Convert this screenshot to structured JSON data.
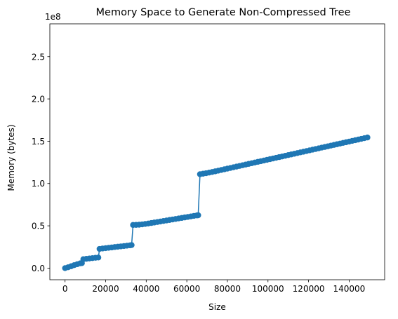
{
  "chart_data": {
    "type": "line",
    "title": "Memory Space to Generate Non-Compressed Tree",
    "xlabel": "Size",
    "ylabel": "Memory (bytes)",
    "y_offset_label": "1e8",
    "y_multiplier": 100000000,
    "xlim": [
      -7500,
      157500
    ],
    "ylim": [
      -13750000,
      288750000
    ],
    "xticks": [
      0,
      20000,
      40000,
      60000,
      80000,
      100000,
      120000,
      140000
    ],
    "xtick_labels": [
      "0",
      "20000",
      "40000",
      "60000",
      "80000",
      "100000",
      "120000",
      "140000"
    ],
    "yticks": [
      0,
      50000000,
      100000000,
      150000000,
      200000000,
      250000000
    ],
    "ytick_labels": [
      "0.0",
      "0.5",
      "1.0",
      "1.5",
      "2.0",
      "2.5"
    ],
    "grid": false,
    "legend": false,
    "marker": "circle",
    "color": "#1f77b4",
    "series": [
      {
        "x": [
          0,
          1500,
          3000,
          4500,
          6000,
          7500,
          8300,
          9000,
          10500,
          12000,
          13500,
          15000,
          16400,
          17000,
          18500,
          20000,
          21500,
          23000,
          24500,
          26000,
          27500,
          29000,
          30500,
          32000,
          32800,
          33500,
          35000,
          36500,
          38000,
          39500,
          41000,
          42500,
          44000,
          45500,
          47000,
          48500,
          50000,
          51500,
          53000,
          54500,
          56000,
          57500,
          59000,
          60500,
          62000,
          63500,
          65000,
          65600,
          66500,
          68000,
          69500,
          71000,
          72500,
          74000,
          75500,
          77000,
          78500,
          80000,
          81500,
          83000,
          84500,
          86000,
          87500,
          89000,
          90500,
          92000,
          93500,
          95000,
          96500,
          98000,
          99500,
          101000,
          102500,
          104000,
          105500,
          107000,
          108500,
          110000,
          111500,
          113000,
          114500,
          116000,
          117500,
          119000,
          120500,
          122000,
          123500,
          125000,
          126500,
          128000,
          129500,
          131000,
          132500,
          134000,
          135500,
          137000,
          138500,
          140000,
          141500,
          143000,
          144500,
          146000,
          147500,
          149000
        ],
        "y": [
          0,
          1000000,
          2200000,
          3500000,
          4600000,
          5700000,
          5900000,
          10500000,
          11000000,
          11400000,
          11800000,
          12200000,
          12500000,
          22700000,
          23200000,
          23600000,
          24000000,
          24400000,
          24900000,
          25300000,
          25700000,
          26100000,
          26500000,
          26900000,
          27200000,
          51000000,
          51100000,
          51300000,
          51700000,
          52200000,
          52700000,
          53300000,
          53900000,
          54500000,
          55100000,
          55700000,
          56300000,
          56900000,
          57500000,
          58100000,
          58700000,
          59300000,
          59900000,
          60500000,
          61100000,
          61700000,
          62300000,
          62500000,
          111000000,
          111600000,
          112200000,
          112900000,
          113600000,
          114400000,
          115200000,
          116000000,
          116800000,
          117600000,
          118400000,
          119200000,
          120000000,
          120800000,
          121600000,
          122400000,
          123200000,
          124000000,
          124800000,
          125600000,
          126400000,
          127200000,
          128000000,
          128800000,
          129600000,
          130400000,
          131200000,
          132000000,
          132800000,
          133600000,
          134400000,
          135200000,
          136000000,
          136800000,
          137600000,
          138400000,
          139200000,
          140000000,
          140800000,
          141600000,
          142400000,
          143200000,
          144000000,
          144800000,
          145600000,
          146400000,
          147200000,
          148000000,
          148800000,
          149600000,
          150400000,
          151200000,
          152000000,
          152800000,
          153600000,
          154400000
        ]
      }
    ]
  }
}
